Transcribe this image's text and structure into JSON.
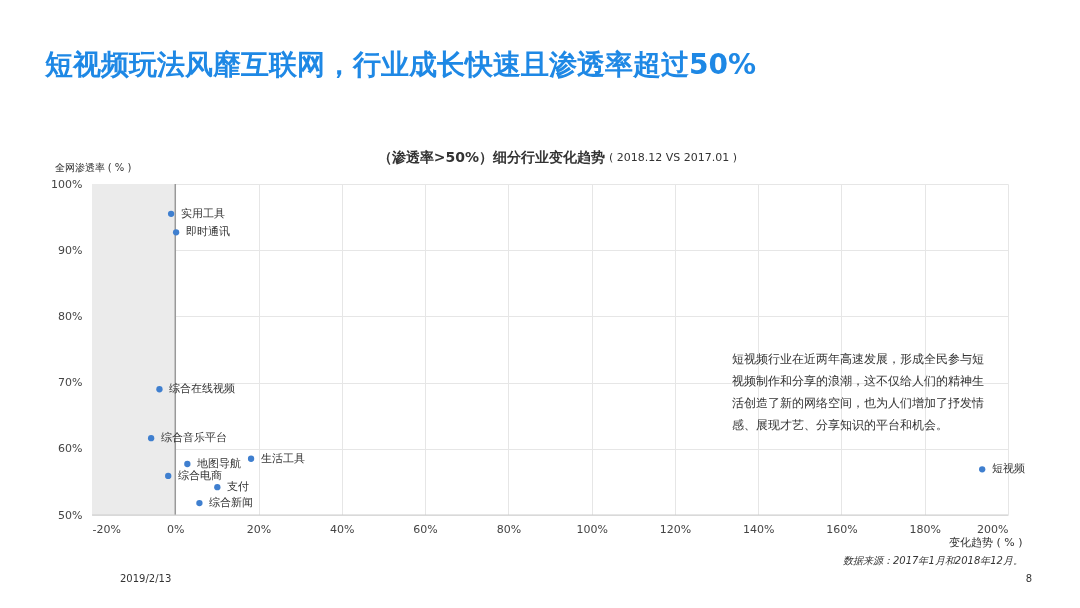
{
  "chart_data": {
    "type": "scatter",
    "title": "短视频玩法风靡互联网，行业成长快速且渗透率超过50%",
    "subtitle": "（渗透率>50%）细分行业变化趋势",
    "xlabel": "变化趋势 ( % )",
    "ylabel": "全网渗透率 ( % )",
    "series": [
      {
        "name": "实用工具",
        "color": "#3f7fcf",
        "x": [
          -1.0
        ],
        "values": [
          95.5
        ]
      },
      {
        "name": "即时通讯",
        "color": "#3f7fcf",
        "x": [
          0.2
        ],
        "values": [
          92.7
        ]
      },
      {
        "name": "综合在线视频",
        "color": "#3f7fcf",
        "x": [
          -3.8
        ],
        "values": [
          69.0
        ]
      },
      {
        "name": "综合音乐平台",
        "color": "#3f7fcf",
        "x": [
          -5.8
        ],
        "values": [
          61.6
        ]
      },
      {
        "name": "生活工具",
        "color": "#3f7fcf",
        "x": [
          18.2
        ],
        "values": [
          58.5
        ]
      },
      {
        "name": "地图导航",
        "color": "#3f7fcf",
        "x": [
          2.9
        ],
        "values": [
          57.7
        ]
      },
      {
        "name": "综合电商",
        "color": "#3f7fcf",
        "x": [
          -1.7
        ],
        "values": [
          55.9
        ]
      },
      {
        "name": "支付",
        "color": "#3f7fcf",
        "x": [
          10.1
        ],
        "values": [
          54.2
        ]
      },
      {
        "name": "综合新闻",
        "color": "#3f7fcf",
        "x": [
          5.8
        ],
        "values": [
          51.8
        ]
      },
      {
        "name": "短视频",
        "color": "#3f7fcf",
        "x": [
          193.8
        ],
        "values": [
          56.9
        ]
      }
    ],
    "xlim": [
      -20,
      200
    ],
    "xticks": [
      {
        "value": -20,
        "label": "-20%"
      },
      {
        "value": 0,
        "label": "0%"
      },
      {
        "value": 20,
        "label": "20%"
      },
      {
        "value": 40,
        "label": "40%"
      },
      {
        "value": 60,
        "label": "60%"
      },
      {
        "value": 80,
        "label": "80%"
      },
      {
        "value": 100,
        "label": "100%"
      },
      {
        "value": 120,
        "label": "120%"
      },
      {
        "value": 140,
        "label": "140%"
      },
      {
        "value": 160,
        "label": "160%"
      },
      {
        "value": 180,
        "label": "180%"
      },
      {
        "value": 200,
        "label": "200%"
      }
    ],
    "ylim": [
      50,
      100
    ],
    "yticks": [
      {
        "value": 50,
        "label": "50%"
      },
      {
        "value": 60,
        "label": "60%"
      },
      {
        "value": 70,
        "label": "70%"
      },
      {
        "value": 80,
        "label": "80%"
      },
      {
        "value": 90,
        "label": "90%"
      },
      {
        "value": 100,
        "label": "100%"
      }
    ],
    "bands": [
      {
        "axis": "x",
        "from": -20,
        "to": 0,
        "color": "#ebebeb"
      }
    ],
    "ref_lines": [
      {
        "axis": "x",
        "value": 0,
        "color": "#999999"
      }
    ],
    "grid": true,
    "marker": "circle",
    "annotations": [
      "( 2018.12 VS 2017.01 )",
      "短视频行业在近两年高速发展，形成全民参与短视频制作和分享的浪潮，这不仅给人们的精神生活创造了新的网络空间，也为人们增加了抒发情感、展现才艺、分享知识的平台和机会。",
      "数据来源：2017年1月和2018年12月。",
      "2019/2/13",
      "8"
    ]
  }
}
